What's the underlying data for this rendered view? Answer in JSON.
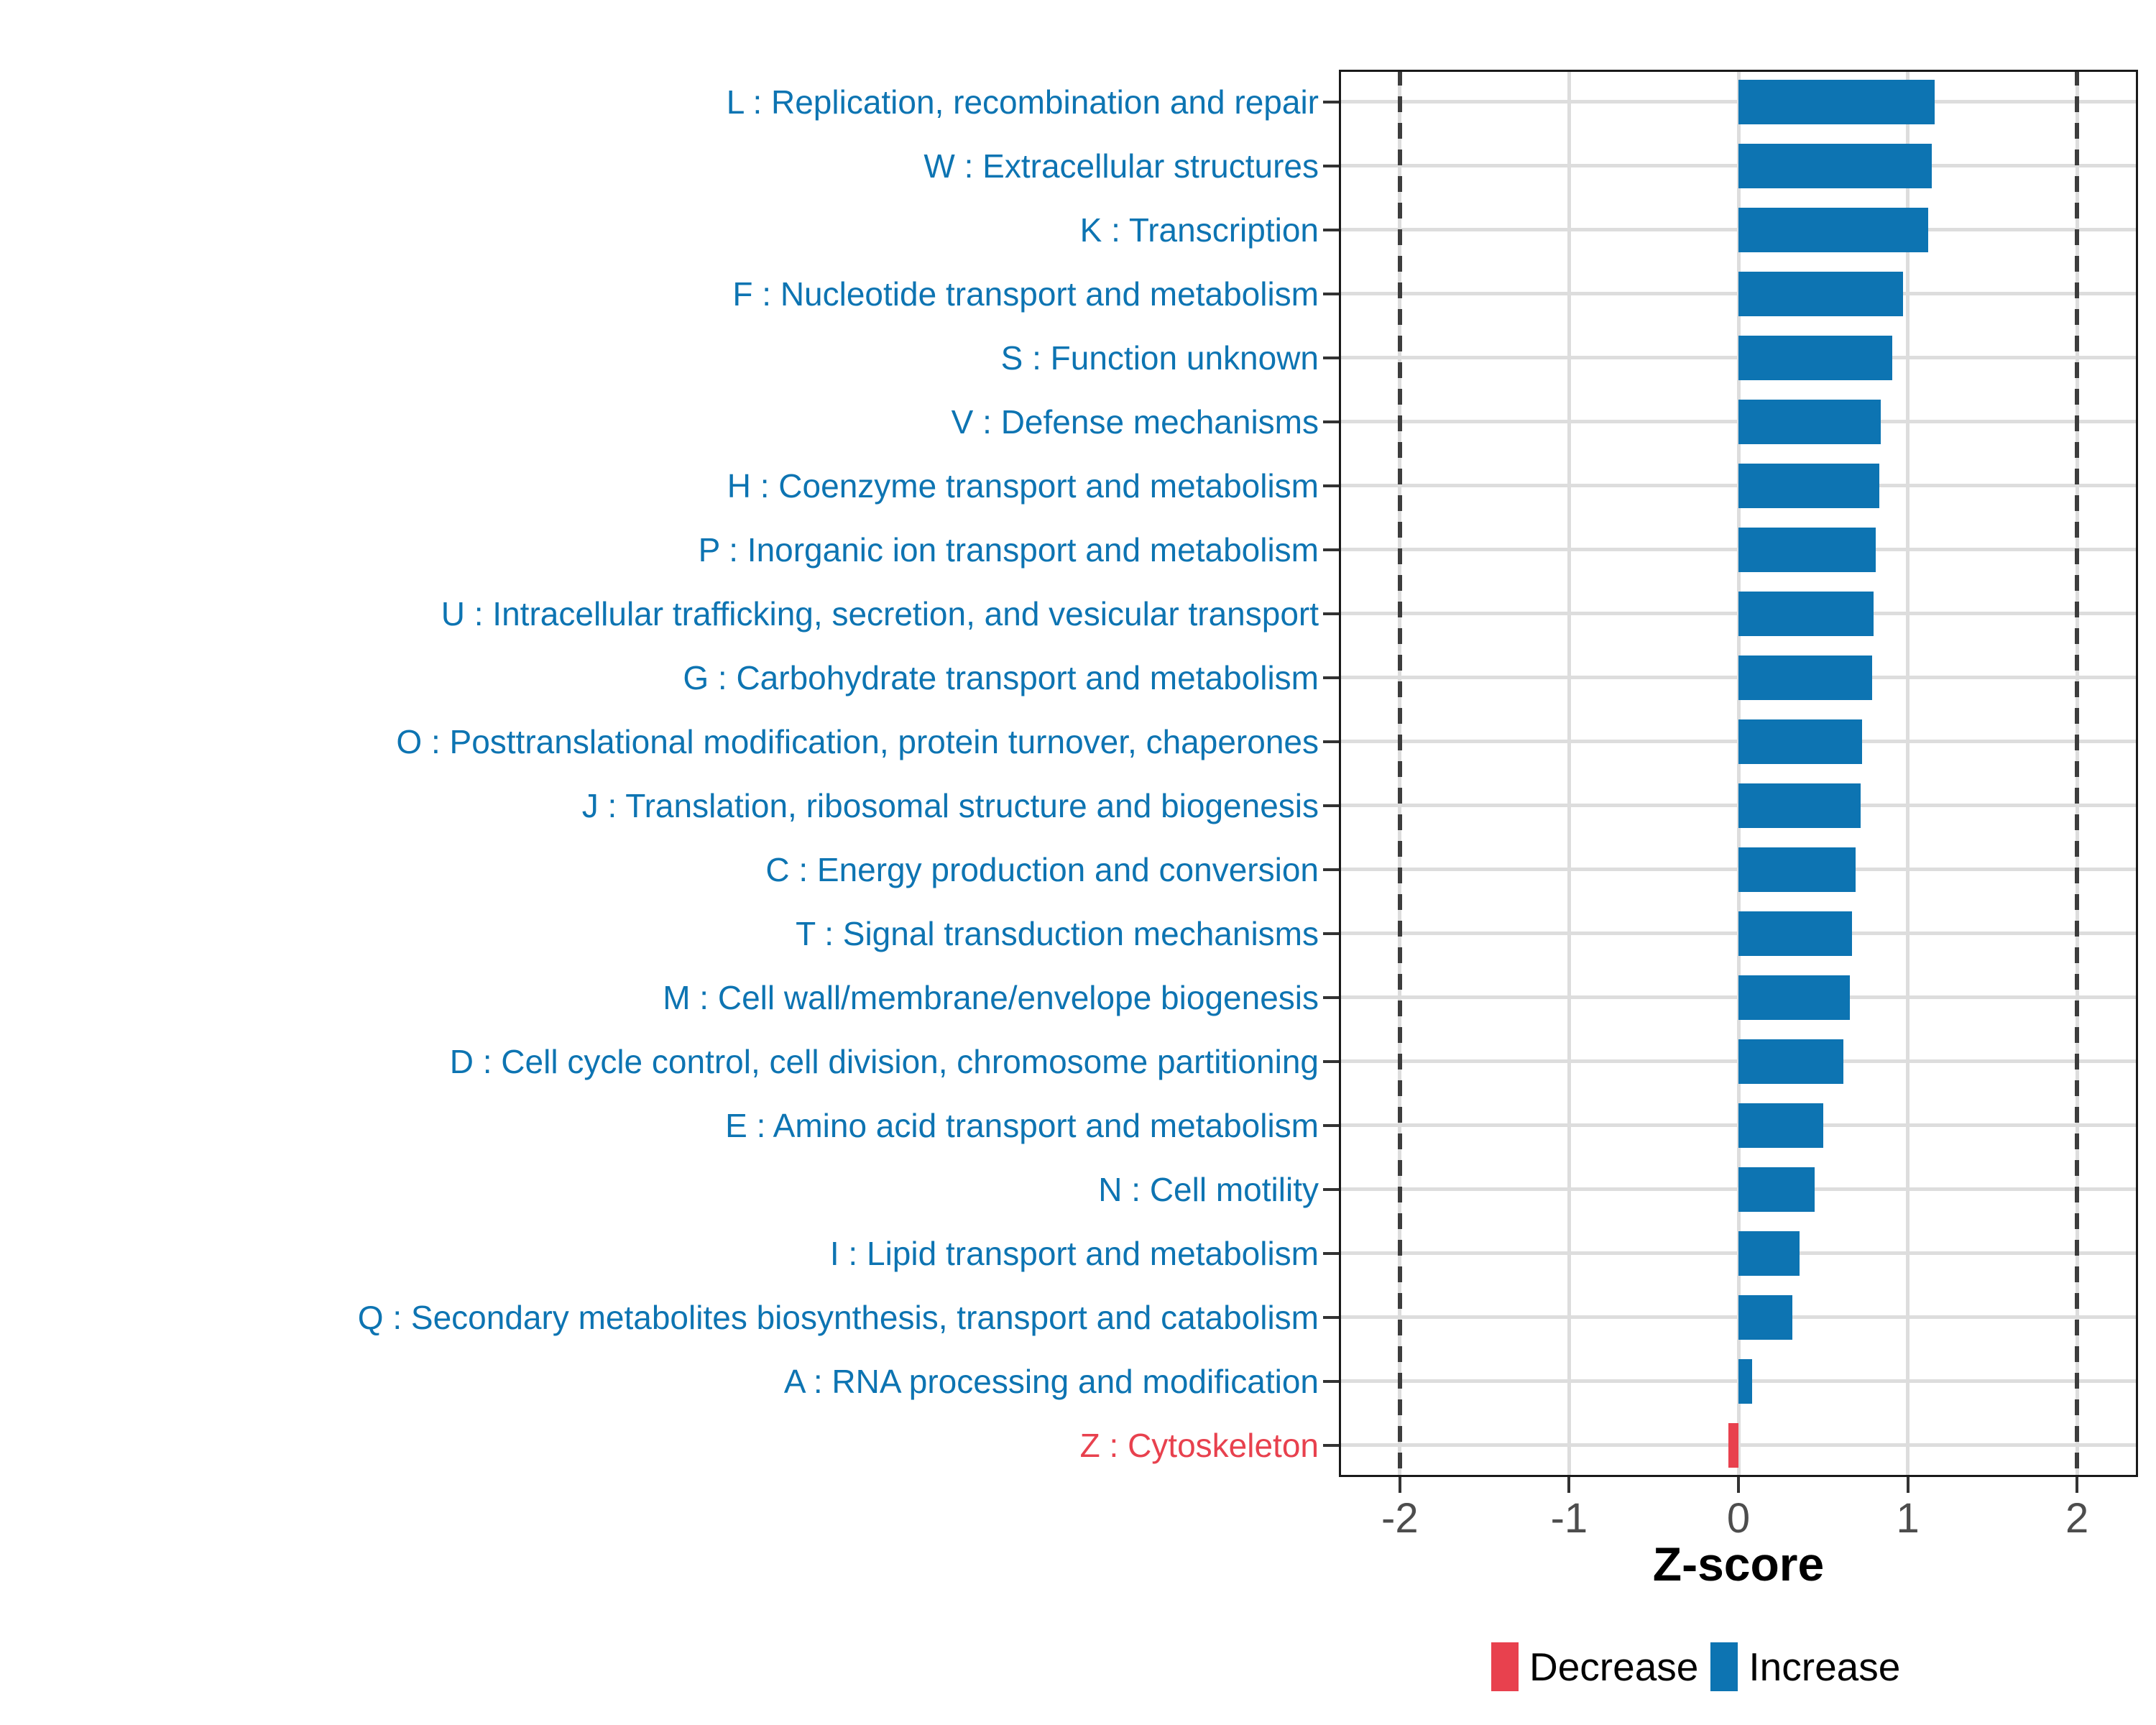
{
  "chart_data": {
    "type": "bar",
    "orientation": "horizontal",
    "xlabel": "Z-score",
    "ylabel": "",
    "xlim": [
      -2.36,
      2.36
    ],
    "x_ticks": [
      {
        "value": -2,
        "label": "-2"
      },
      {
        "value": -1,
        "label": "-1"
      },
      {
        "value": 0,
        "label": "0"
      },
      {
        "value": 1,
        "label": "1"
      },
      {
        "value": 2,
        "label": "2"
      }
    ],
    "reference_lines": {
      "style": "dashed",
      "x_values": [
        -2,
        2
      ]
    },
    "grid": true,
    "colors": {
      "Increase": "#0d74b2",
      "Decrease": "#e8414e",
      "gridline": "#dddddd",
      "dashed_line": "#3d3d3d",
      "tick_label": "#4d4d4d",
      "axis_title": "#000000",
      "panel_border": "#1a1a1a"
    },
    "legend": {
      "position": "bottom-right",
      "entries": [
        {
          "label": "Decrease",
          "color": "#e8414e"
        },
        {
          "label": "Increase",
          "color": "#0d74b2"
        }
      ]
    },
    "categories": [
      {
        "code": "L",
        "label": "L : Replication, recombination and repair",
        "value": 1.16,
        "direction": "Increase"
      },
      {
        "code": "W",
        "label": "W : Extracellular structures",
        "value": 1.14,
        "direction": "Increase"
      },
      {
        "code": "K",
        "label": "K : Transcription",
        "value": 1.12,
        "direction": "Increase"
      },
      {
        "code": "F",
        "label": "F : Nucleotide transport and metabolism",
        "value": 0.97,
        "direction": "Increase"
      },
      {
        "code": "S",
        "label": "S : Function unknown",
        "value": 0.91,
        "direction": "Increase"
      },
      {
        "code": "V",
        "label": "V : Defense mechanisms",
        "value": 0.84,
        "direction": "Increase"
      },
      {
        "code": "H",
        "label": "H : Coenzyme transport and metabolism",
        "value": 0.83,
        "direction": "Increase"
      },
      {
        "code": "P",
        "label": "P : Inorganic ion transport and metabolism",
        "value": 0.81,
        "direction": "Increase"
      },
      {
        "code": "U",
        "label": "U : Intracellular trafficking, secretion, and vesicular transport",
        "value": 0.8,
        "direction": "Increase"
      },
      {
        "code": "G",
        "label": "G : Carbohydrate transport and metabolism",
        "value": 0.79,
        "direction": "Increase"
      },
      {
        "code": "O",
        "label": "O : Posttranslational modification, protein turnover, chaperones",
        "value": 0.73,
        "direction": "Increase"
      },
      {
        "code": "J",
        "label": "J : Translation, ribosomal structure and biogenesis",
        "value": 0.72,
        "direction": "Increase"
      },
      {
        "code": "C",
        "label": "C : Energy production and conversion",
        "value": 0.69,
        "direction": "Increase"
      },
      {
        "code": "T",
        "label": "T : Signal transduction mechanisms",
        "value": 0.67,
        "direction": "Increase"
      },
      {
        "code": "M",
        "label": "M : Cell wall/membrane/envelope biogenesis",
        "value": 0.66,
        "direction": "Increase"
      },
      {
        "code": "D",
        "label": "D : Cell cycle control, cell division, chromosome partitioning",
        "value": 0.62,
        "direction": "Increase"
      },
      {
        "code": "E",
        "label": "E : Amino acid transport and metabolism",
        "value": 0.5,
        "direction": "Increase"
      },
      {
        "code": "N",
        "label": "N : Cell motility",
        "value": 0.45,
        "direction": "Increase"
      },
      {
        "code": "I",
        "label": "I : Lipid transport and metabolism",
        "value": 0.36,
        "direction": "Increase"
      },
      {
        "code": "Q",
        "label": "Q : Secondary metabolites biosynthesis, transport and catabolism",
        "value": 0.32,
        "direction": "Increase"
      },
      {
        "code": "A",
        "label": "A : RNA processing and modification",
        "value": 0.08,
        "direction": "Increase"
      },
      {
        "code": "Z",
        "label": "Z : Cytoskeleton",
        "value": -0.06,
        "direction": "Decrease"
      }
    ]
  }
}
